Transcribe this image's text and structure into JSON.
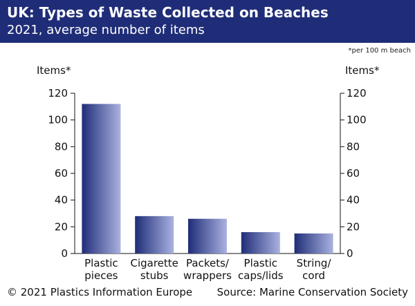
{
  "header": {
    "title": "UK: Types of Waste Collected on Beaches",
    "subtitle": "2021, average number of items"
  },
  "footnote": "*per 100 m beach",
  "footer": {
    "copyright": "© 2021 Plastics Information Europe",
    "source": "Source: Marine Conservation Society"
  },
  "chart_data": {
    "type": "bar",
    "categories": [
      [
        "Plastic",
        "pieces"
      ],
      [
        "Cigarette",
        "stubs"
      ],
      [
        "Packets/",
        "wrappers"
      ],
      [
        "Plastic",
        "caps/lids"
      ],
      [
        "String/",
        "cord"
      ]
    ],
    "values": [
      112,
      28,
      26,
      16,
      15
    ],
    "ylabel_left": "Items*",
    "ylabel_right": "Items*",
    "ylim": [
      0,
      120
    ],
    "yticks": [
      0,
      20,
      40,
      60,
      80,
      100,
      120
    ],
    "grid": false,
    "bar_color_dark": "#1f2d78",
    "bar_color_light": "#aab2e0"
  }
}
